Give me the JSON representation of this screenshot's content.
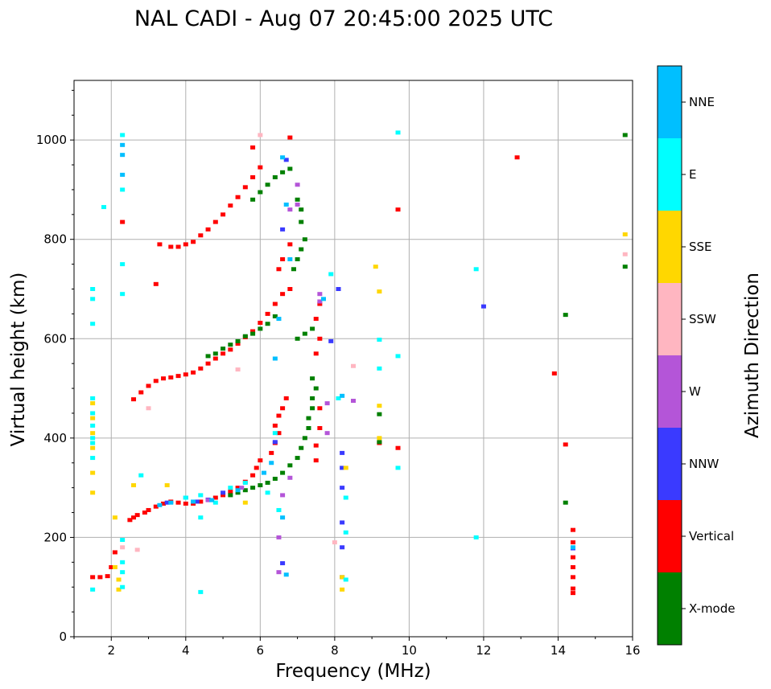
{
  "chart_data": {
    "type": "scatter",
    "title": "NAL CADI - Aug 07 20:45:00 2025 UTC",
    "xlabel": "Frequency (MHz)",
    "ylabel": "Virtual height (km)",
    "xlim": [
      1,
      16
    ],
    "ylim": [
      0,
      1120
    ],
    "xticks": [
      "2",
      "4",
      "6",
      "8",
      "10",
      "12",
      "14",
      "16"
    ],
    "yticks": [
      "0",
      "200",
      "400",
      "600",
      "800",
      "1000"
    ],
    "grid": true,
    "colorbar": {
      "label": "Azimuth Direction",
      "categories": [
        {
          "name": "X-mode",
          "color": "#008000"
        },
        {
          "name": "Vertical",
          "color": "#ff0000"
        },
        {
          "name": "NNW",
          "color": "#3a3aff"
        },
        {
          "name": "W",
          "color": "#b455d8"
        },
        {
          "name": "SSW",
          "color": "#ffb6c1"
        },
        {
          "name": "SSE",
          "color": "#ffd700"
        },
        {
          "name": "E",
          "color": "#00ffff"
        },
        {
          "name": "NNE",
          "color": "#00bfff"
        }
      ]
    },
    "series": [
      {
        "name": "Vertical",
        "color": "#ff0000",
        "points": [
          [
            1.5,
            120
          ],
          [
            1.7,
            120
          ],
          [
            1.9,
            122
          ],
          [
            2.0,
            140
          ],
          [
            2.1,
            170
          ],
          [
            2.5,
            235
          ],
          [
            2.6,
            240
          ],
          [
            2.7,
            245
          ],
          [
            2.9,
            250
          ],
          [
            3.0,
            255
          ],
          [
            3.2,
            262
          ],
          [
            3.4,
            268
          ],
          [
            3.6,
            272
          ],
          [
            3.8,
            270
          ],
          [
            4.0,
            268
          ],
          [
            4.2,
            268
          ],
          [
            4.4,
            272
          ],
          [
            4.6,
            276
          ],
          [
            4.8,
            280
          ],
          [
            5.0,
            285
          ],
          [
            5.2,
            292
          ],
          [
            5.4,
            300
          ],
          [
            5.6,
            312
          ],
          [
            5.8,
            325
          ],
          [
            5.9,
            340
          ],
          [
            6.0,
            355
          ],
          [
            6.3,
            370
          ],
          [
            6.4,
            390
          ],
          [
            6.5,
            410
          ],
          [
            6.4,
            425
          ],
          [
            6.5,
            445
          ],
          [
            6.6,
            460
          ],
          [
            6.7,
            480
          ],
          [
            2.6,
            478
          ],
          [
            2.8,
            492
          ],
          [
            3.0,
            505
          ],
          [
            3.2,
            515
          ],
          [
            3.4,
            520
          ],
          [
            3.6,
            522
          ],
          [
            3.8,
            525
          ],
          [
            4.0,
            528
          ],
          [
            4.2,
            532
          ],
          [
            4.4,
            540
          ],
          [
            4.6,
            550
          ],
          [
            4.8,
            560
          ],
          [
            5.0,
            570
          ],
          [
            5.2,
            578
          ],
          [
            5.4,
            590
          ],
          [
            5.6,
            603
          ],
          [
            5.8,
            615
          ],
          [
            6.0,
            632
          ],
          [
            6.2,
            650
          ],
          [
            6.4,
            670
          ],
          [
            6.6,
            690
          ],
          [
            6.8,
            700
          ],
          [
            6.5,
            740
          ],
          [
            6.6,
            760
          ],
          [
            3.3,
            790
          ],
          [
            3.6,
            785
          ],
          [
            3.8,
            785
          ],
          [
            4.0,
            790
          ],
          [
            4.2,
            795
          ],
          [
            4.4,
            808
          ],
          [
            4.6,
            820
          ],
          [
            4.8,
            835
          ],
          [
            5.0,
            850
          ],
          [
            5.2,
            868
          ],
          [
            5.4,
            885
          ],
          [
            5.6,
            905
          ],
          [
            5.8,
            925
          ],
          [
            6.0,
            945
          ],
          [
            5.8,
            985
          ],
          [
            6.8,
            1005
          ],
          [
            6.8,
            790
          ],
          [
            7.5,
            355
          ],
          [
            7.5,
            385
          ],
          [
            7.6,
            420
          ],
          [
            7.6,
            460
          ],
          [
            7.5,
            570
          ],
          [
            7.6,
            600
          ],
          [
            7.5,
            640
          ],
          [
            7.6,
            670
          ],
          [
            9.2,
            390
          ],
          [
            9.7,
            380
          ],
          [
            9.7,
            860
          ],
          [
            12.9,
            965
          ],
          [
            13.9,
            530
          ],
          [
            14.2,
            387
          ],
          [
            14.4,
            97
          ],
          [
            14.4,
            120
          ],
          [
            14.4,
            140
          ],
          [
            14.4,
            160
          ],
          [
            14.4,
            190
          ],
          [
            14.4,
            215
          ],
          [
            14.4,
            88
          ],
          [
            3.2,
            710
          ],
          [
            2.3,
            835
          ]
        ]
      },
      {
        "name": "X-mode",
        "color": "#008000",
        "points": [
          [
            5.2,
            285
          ],
          [
            5.4,
            290
          ],
          [
            5.6,
            295
          ],
          [
            5.8,
            300
          ],
          [
            6.0,
            305
          ],
          [
            6.2,
            310
          ],
          [
            6.4,
            318
          ],
          [
            6.6,
            330
          ],
          [
            6.8,
            345
          ],
          [
            7.0,
            360
          ],
          [
            7.1,
            380
          ],
          [
            7.2,
            400
          ],
          [
            7.3,
            420
          ],
          [
            7.3,
            440
          ],
          [
            7.4,
            460
          ],
          [
            7.4,
            480
          ],
          [
            7.5,
            500
          ],
          [
            7.4,
            520
          ],
          [
            4.6,
            565
          ],
          [
            4.8,
            570
          ],
          [
            5.0,
            580
          ],
          [
            5.2,
            588
          ],
          [
            5.4,
            595
          ],
          [
            5.6,
            605
          ],
          [
            5.8,
            610
          ],
          [
            6.0,
            620
          ],
          [
            6.2,
            630
          ],
          [
            6.4,
            645
          ],
          [
            7.0,
            600
          ],
          [
            7.2,
            610
          ],
          [
            7.4,
            620
          ],
          [
            5.8,
            880
          ],
          [
            6.0,
            895
          ],
          [
            6.2,
            910
          ],
          [
            6.4,
            925
          ],
          [
            6.6,
            935
          ],
          [
            6.8,
            942
          ],
          [
            7.0,
            880
          ],
          [
            7.1,
            860
          ],
          [
            7.1,
            835
          ],
          [
            7.2,
            800
          ],
          [
            7.1,
            780
          ],
          [
            7.0,
            760
          ],
          [
            6.9,
            740
          ],
          [
            14.2,
            648
          ],
          [
            14.2,
            270
          ],
          [
            15.8,
            1010
          ],
          [
            15.8,
            745
          ],
          [
            9.2,
            448
          ],
          [
            9.2,
            392
          ]
        ]
      },
      {
        "name": "NNW",
        "color": "#3a3aff",
        "points": [
          [
            3.5,
            270
          ],
          [
            4.0,
            280
          ],
          [
            4.3,
            272
          ],
          [
            4.6,
            276
          ],
          [
            5.0,
            290
          ],
          [
            6.4,
            392
          ],
          [
            6.6,
            148
          ],
          [
            8.2,
            370
          ],
          [
            8.2,
            340
          ],
          [
            8.2,
            300
          ],
          [
            8.2,
            230
          ],
          [
            8.2,
            180
          ],
          [
            8.2,
            120
          ],
          [
            8.1,
            700
          ],
          [
            6.6,
            820
          ],
          [
            6.7,
            960
          ],
          [
            7.9,
            595
          ],
          [
            12.0,
            665
          ],
          [
            14.4,
            178
          ]
        ]
      },
      {
        "name": "W",
        "color": "#b455d8",
        "points": [
          [
            4.6,
            275
          ],
          [
            5.5,
            300
          ],
          [
            6.5,
            200
          ],
          [
            6.5,
            130
          ],
          [
            6.6,
            285
          ],
          [
            6.8,
            320
          ],
          [
            7.8,
            410
          ],
          [
            7.8,
            470
          ],
          [
            8.5,
            475
          ],
          [
            6.8,
            860
          ],
          [
            7.0,
            870
          ],
          [
            7.6,
            690
          ],
          [
            7.6,
            675
          ],
          [
            7.0,
            910
          ]
        ]
      },
      {
        "name": "SSW",
        "color": "#ffb6c1",
        "points": [
          [
            2.3,
            180
          ],
          [
            2.7,
            175
          ],
          [
            8.0,
            190
          ],
          [
            8.5,
            545
          ],
          [
            15.8,
            770
          ],
          [
            5.4,
            538
          ],
          [
            6.0,
            1010
          ],
          [
            3.0,
            460
          ]
        ]
      },
      {
        "name": "SSE",
        "color": "#ffd700",
        "points": [
          [
            1.5,
            290
          ],
          [
            1.5,
            330
          ],
          [
            1.5,
            380
          ],
          [
            1.5,
            410
          ],
          [
            1.5,
            440
          ],
          [
            1.5,
            470
          ],
          [
            2.1,
            240
          ],
          [
            2.1,
            140
          ],
          [
            2.2,
            115
          ],
          [
            2.2,
            95
          ],
          [
            8.2,
            120
          ],
          [
            8.2,
            95
          ],
          [
            8.3,
            340
          ],
          [
            9.2,
            695
          ],
          [
            9.2,
            465
          ],
          [
            9.2,
            400
          ],
          [
            9.1,
            745
          ],
          [
            15.8,
            810
          ],
          [
            2.6,
            305
          ],
          [
            3.5,
            305
          ],
          [
            5.6,
            270
          ]
        ]
      },
      {
        "name": "E",
        "color": "#00ffff",
        "points": [
          [
            1.5,
            360
          ],
          [
            1.5,
            390
          ],
          [
            1.5,
            400
          ],
          [
            1.5,
            425
          ],
          [
            1.5,
            450
          ],
          [
            1.5,
            480
          ],
          [
            1.5,
            630
          ],
          [
            1.5,
            680
          ],
          [
            1.5,
            700
          ],
          [
            1.5,
            95
          ],
          [
            2.3,
            100
          ],
          [
            2.3,
            130
          ],
          [
            2.3,
            150
          ],
          [
            2.3,
            195
          ],
          [
            2.3,
            690
          ],
          [
            2.3,
            900
          ],
          [
            2.3,
            750
          ],
          [
            2.3,
            1010
          ],
          [
            4.4,
            90
          ],
          [
            4.4,
            240
          ],
          [
            4.0,
            280
          ],
          [
            4.4,
            285
          ],
          [
            4.8,
            270
          ],
          [
            5.2,
            300
          ],
          [
            5.6,
            310
          ],
          [
            6.2,
            290
          ],
          [
            6.5,
            255
          ],
          [
            6.4,
            410
          ],
          [
            8.3,
            280
          ],
          [
            8.3,
            210
          ],
          [
            8.3,
            115
          ],
          [
            8.1,
            480
          ],
          [
            7.9,
            730
          ],
          [
            9.2,
            540
          ],
          [
            9.2,
            598
          ],
          [
            9.7,
            565
          ],
          [
            9.7,
            340
          ],
          [
            9.7,
            1015
          ],
          [
            11.8,
            200
          ],
          [
            11.8,
            740
          ],
          [
            2.8,
            325
          ],
          [
            1.8,
            865
          ]
        ]
      },
      {
        "name": "NNE",
        "color": "#00bfff",
        "points": [
          [
            2.3,
            990
          ],
          [
            2.3,
            970
          ],
          [
            2.3,
            930
          ],
          [
            3.3,
            265
          ],
          [
            3.6,
            270
          ],
          [
            4.2,
            272
          ],
          [
            4.7,
            275
          ],
          [
            5.4,
            295
          ],
          [
            6.1,
            330
          ],
          [
            6.3,
            350
          ],
          [
            6.6,
            240
          ],
          [
            6.7,
            125
          ],
          [
            6.7,
            870
          ],
          [
            6.6,
            965
          ],
          [
            6.5,
            640
          ],
          [
            6.8,
            760
          ],
          [
            7.7,
            680
          ],
          [
            8.2,
            485
          ],
          [
            14.4,
            180
          ],
          [
            6.4,
            560
          ]
        ]
      }
    ]
  }
}
